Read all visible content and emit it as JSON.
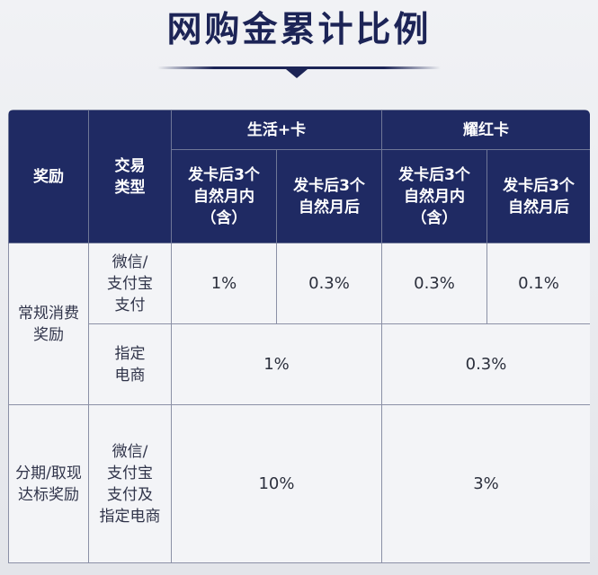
{
  "title": "网购金累计比例",
  "table": {
    "headers": {
      "reward": "奖励",
      "txn_type": "交易\n类型",
      "card_life": "生活+卡",
      "card_yao": "耀红卡",
      "within_3m": "发卡后3个\n自然月内\n（含）",
      "after_3m": "发卡后3个\n自然月后"
    },
    "rows": {
      "regular": {
        "label": "常规消费\n奖励",
        "wechat_alipay": {
          "type": "微信/\n支付宝\n支付",
          "values": [
            "1%",
            "0.3%",
            "0.3%",
            "0.1%"
          ]
        },
        "designated": {
          "type": "指定\n电商",
          "values": [
            "1%",
            "0.3%"
          ]
        }
      },
      "installment": {
        "label": "分期/取现\n达标奖励",
        "type": "微信/\n支付宝\n支付及\n指定电商",
        "values": [
          "10%",
          "3%"
        ]
      }
    }
  }
}
